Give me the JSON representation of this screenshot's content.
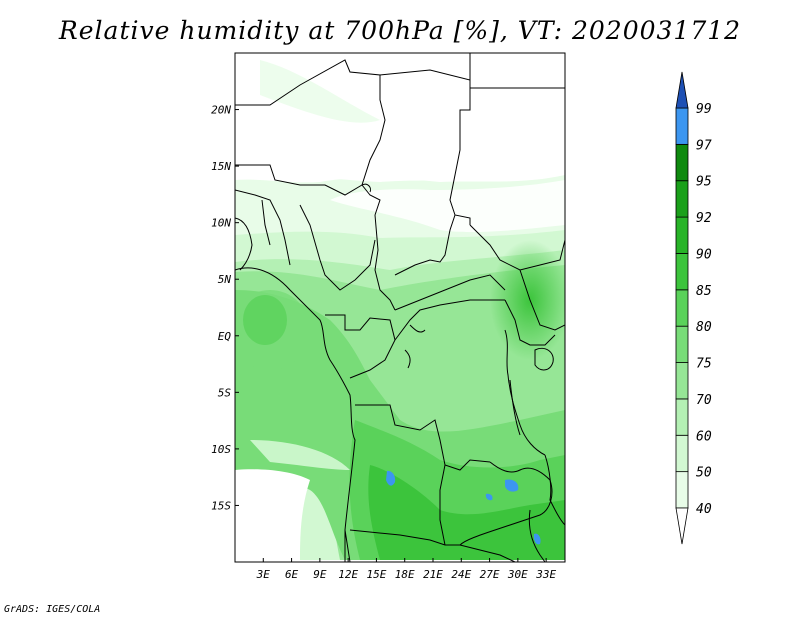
{
  "title": "Relative humidity at 700hPa [%], VT: 2020031712",
  "credit": "GrADS: IGES/COLA",
  "map": {
    "lon_range": [
      0,
      35
    ],
    "lat_range": [
      -20,
      25
    ],
    "lon_ticks": [
      {
        "value": 3,
        "label": "3E"
      },
      {
        "value": 6,
        "label": "6E"
      },
      {
        "value": 9,
        "label": "9E"
      },
      {
        "value": 12,
        "label": "12E"
      },
      {
        "value": 15,
        "label": "15E"
      },
      {
        "value": 18,
        "label": "18E"
      },
      {
        "value": 21,
        "label": "21E"
      },
      {
        "value": 24,
        "label": "24E"
      },
      {
        "value": 27,
        "label": "27E"
      },
      {
        "value": 30,
        "label": "30E"
      },
      {
        "value": 33,
        "label": "33E"
      }
    ],
    "lat_ticks": [
      {
        "value": 20,
        "label": "20N"
      },
      {
        "value": 15,
        "label": "15N"
      },
      {
        "value": 10,
        "label": "10N"
      },
      {
        "value": 5,
        "label": "5N"
      },
      {
        "value": 0,
        "label": "EQ"
      },
      {
        "value": -5,
        "label": "5S"
      },
      {
        "value": -10,
        "label": "10S"
      },
      {
        "value": -15,
        "label": "15S"
      }
    ]
  },
  "colorbar": {
    "levels": [
      {
        "label": "40",
        "color": "#e8fce8"
      },
      {
        "label": "50",
        "color": "#d2f8d2"
      },
      {
        "label": "60",
        "color": "#b4f0b4"
      },
      {
        "label": "70",
        "color": "#96e696"
      },
      {
        "label": "75",
        "color": "#78dc78"
      },
      {
        "label": "80",
        "color": "#5ad25a"
      },
      {
        "label": "85",
        "color": "#3cc43c"
      },
      {
        "label": "90",
        "color": "#28b428"
      },
      {
        "label": "92",
        "color": "#1aa01a"
      },
      {
        "label": "95",
        "color": "#0f8a0f"
      },
      {
        "label": "97",
        "color": "#3c96f0"
      },
      {
        "label": "99",
        "color": "#1e6ed2"
      }
    ],
    "low_end_color": "#ffffff",
    "high_end_color": "#1e50b4"
  }
}
